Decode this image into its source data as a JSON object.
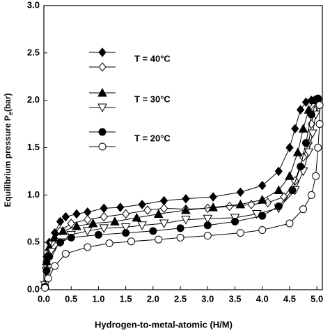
{
  "chart_data": {
    "type": "line",
    "xlabel": "Hydrogen-to-metal-atomic (H/M)",
    "ylabel": {
      "text": "Equilibrium pressure P",
      "subscript": "e",
      "suffix": "(bar)"
    },
    "xlim": [
      0,
      5.1
    ],
    "ylim": [
      0,
      3
    ],
    "xticks": [
      {
        "value": 0,
        "label": "0.0"
      },
      0.5,
      {
        "value": 1,
        "label": "1.0"
      },
      1.5,
      {
        "value": 2,
        "label": "2.0"
      },
      2.5,
      {
        "value": 3,
        "label": "3.0"
      },
      3.5,
      {
        "value": 4,
        "label": "4.0"
      },
      4.5,
      {
        "value": 5,
        "label": "5.0"
      }
    ],
    "yticks": [
      {
        "value": 0,
        "label": "0.0"
      },
      0.5,
      {
        "value": 1,
        "label": "1.0"
      },
      1.5,
      {
        "value": 2,
        "label": "2.0"
      },
      2.5,
      {
        "value": 3,
        "label": "3.0"
      }
    ],
    "grid": false,
    "groups": [
      {
        "name": "T = 40°C",
        "series": [
          {
            "marker": "diamond",
            "filled": true,
            "color": "#000000",
            "x": [
              0.02,
              0.05,
              0.1,
              0.2,
              0.3,
              0.4,
              0.6,
              0.8,
              1.1,
              1.4,
              1.8,
              2.2,
              2.6,
              3.1,
              3.6,
              4.0,
              4.3,
              4.5,
              4.6,
              4.7,
              4.8,
              4.9
            ],
            "values": [
              0.05,
              0.35,
              0.5,
              0.6,
              0.72,
              0.77,
              0.8,
              0.82,
              0.86,
              0.87,
              0.9,
              0.94,
              0.96,
              0.98,
              1.03,
              1.1,
              1.25,
              1.5,
              1.7,
              1.9,
              1.98,
              2.0
            ]
          },
          {
            "marker": "diamond",
            "filled": false,
            "color": "#000000",
            "x": [
              5.0,
              4.95,
              4.9,
              4.85,
              4.75,
              4.6,
              4.4,
              4.1,
              3.8,
              3.4,
              3.0,
              2.6,
              2.2,
              1.9,
              1.5,
              1.1,
              0.8,
              0.5,
              0.3,
              0.15,
              0.05,
              0.02
            ],
            "values": [
              2.0,
              1.9,
              1.75,
              1.55,
              1.4,
              1.15,
              0.98,
              0.92,
              0.9,
              0.88,
              0.86,
              0.85,
              0.86,
              0.84,
              0.8,
              0.77,
              0.74,
              0.7,
              0.62,
              0.5,
              0.3,
              0.05
            ]
          }
        ]
      },
      {
        "name": "T = 30°C",
        "series": [
          {
            "marker": "triangle",
            "filled": true,
            "color": "#000000",
            "x": [
              0.02,
              0.05,
              0.1,
              0.2,
              0.35,
              0.6,
              0.9,
              1.3,
              1.7,
              2.1,
              2.6,
              3.1,
              3.6,
              4.0,
              4.3,
              4.5,
              4.65,
              4.75,
              4.85,
              4.95
            ],
            "values": [
              0.05,
              0.3,
              0.45,
              0.55,
              0.62,
              0.67,
              0.7,
              0.72,
              0.76,
              0.8,
              0.84,
              0.87,
              0.9,
              0.95,
              1.05,
              1.2,
              1.45,
              1.7,
              1.9,
              2.0
            ]
          },
          {
            "marker": "triangle-down",
            "filled": false,
            "color": "#000000",
            "x": [
              5.02,
              4.98,
              4.92,
              4.85,
              4.75,
              4.6,
              4.3,
              3.9,
              3.5,
              3.0,
              2.6,
              2.2,
              1.8,
              1.5,
              1.1,
              0.8,
              0.5,
              0.3,
              0.15,
              0.05,
              0.02
            ],
            "values": [
              1.98,
              1.85,
              1.65,
              1.45,
              1.25,
              1.05,
              0.86,
              0.8,
              0.76,
              0.75,
              0.74,
              0.7,
              0.68,
              0.66,
              0.65,
              0.62,
              0.58,
              0.5,
              0.4,
              0.2,
              0.05
            ]
          }
        ]
      },
      {
        "name": "T = 20°C",
        "series": [
          {
            "marker": "circle",
            "filled": true,
            "color": "#000000",
            "x": [
              0.02,
              0.05,
              0.1,
              0.3,
              0.5,
              1.0,
              1.5,
              2.0,
              2.5,
              3.0,
              3.5,
              4.0,
              4.3,
              4.55,
              4.7,
              4.8,
              4.9,
              5.02
            ],
            "values": [
              0.03,
              0.2,
              0.35,
              0.5,
              0.55,
              0.58,
              0.6,
              0.62,
              0.65,
              0.68,
              0.72,
              0.78,
              0.88,
              1.05,
              1.3,
              1.55,
              1.85,
              2.02
            ]
          },
          {
            "marker": "circle",
            "filled": false,
            "color": "#000000",
            "x": [
              5.05,
              5.05,
              5.02,
              4.98,
              4.9,
              4.75,
              4.5,
              4.0,
              3.6,
              3.0,
              2.5,
              2.1,
              1.6,
              1.2,
              0.8,
              0.4,
              0.2,
              0.08,
              0.02
            ],
            "values": [
              1.95,
              1.75,
              1.5,
              1.2,
              1.0,
              0.85,
              0.7,
              0.63,
              0.6,
              0.57,
              0.55,
              0.53,
              0.51,
              0.49,
              0.45,
              0.38,
              0.25,
              0.12,
              0.02
            ]
          }
        ]
      }
    ]
  }
}
